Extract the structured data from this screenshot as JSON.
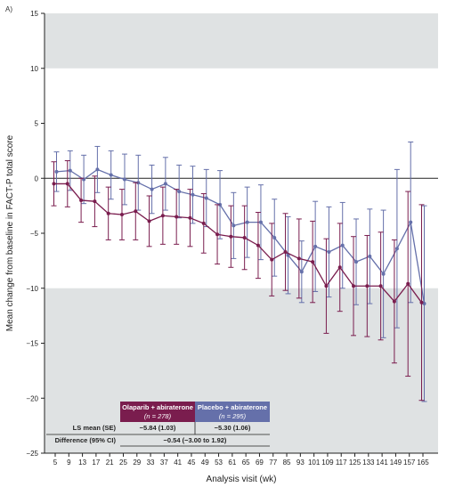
{
  "panel_label": "A)",
  "chart_data": {
    "type": "line",
    "xlabel": "Analysis visit (wk)",
    "ylabel": "Mean change from baseline in FACT-P total score",
    "ylim": [
      -25,
      15
    ],
    "yticks": [
      15,
      10,
      5,
      0,
      -5,
      -10,
      -15,
      -20,
      -25
    ],
    "categories": [
      "5",
      "9",
      "13",
      "17",
      "21",
      "25",
      "29",
      "33",
      "37",
      "41",
      "45",
      "49",
      "53",
      "61",
      "65",
      "69",
      "77",
      "85",
      "93",
      "101",
      "109",
      "117",
      "125",
      "133",
      "141",
      "149",
      "157",
      "165"
    ],
    "shaded_regions_y": [
      [
        10,
        15
      ],
      [
        -25,
        -10
      ]
    ],
    "reference_line_y": 0,
    "grid": false,
    "series": [
      {
        "name": "Olaparib + abiraterone",
        "color": "#7a1d4e",
        "values": [
          -0.5,
          -0.5,
          -2.0,
          -2.1,
          -3.2,
          -3.3,
          -3.0,
          -3.9,
          -3.4,
          -3.5,
          -3.6,
          -4.1,
          -5.1,
          -5.3,
          -5.4,
          -6.1,
          -7.4,
          -6.7,
          -7.3,
          -7.6,
          -9.8,
          -8.1,
          -9.8,
          -9.8,
          -9.8,
          -11.2,
          -9.6,
          -11.3
        ],
        "errors": [
          2.0,
          2.1,
          2.0,
          2.3,
          2.4,
          2.3,
          2.6,
          2.3,
          2.6,
          2.5,
          2.6,
          2.7,
          2.7,
          2.8,
          2.9,
          3.0,
          3.3,
          3.5,
          3.6,
          3.7,
          4.3,
          4.0,
          4.5,
          4.6,
          4.9,
          5.6,
          8.4,
          8.9
        ]
      },
      {
        "name": "Placebo + abiraterone",
        "color": "#6570aa",
        "values": [
          0.6,
          0.7,
          -0.1,
          0.8,
          0.3,
          -0.1,
          -0.4,
          -1.0,
          -0.5,
          -1.2,
          -1.5,
          -1.8,
          -2.4,
          -4.3,
          -4.0,
          -4.0,
          -5.4,
          -7.0,
          -8.5,
          -6.2,
          -6.7,
          -6.1,
          -7.6,
          -7.1,
          -8.7,
          -6.4,
          -4.0,
          -11.4
        ],
        "errors": [
          1.8,
          1.8,
          2.2,
          2.1,
          2.2,
          2.3,
          2.5,
          2.2,
          2.4,
          2.4,
          2.6,
          2.6,
          3.1,
          3.0,
          3.2,
          3.4,
          3.5,
          3.5,
          2.8,
          4.1,
          4.1,
          3.9,
          3.9,
          4.3,
          5.8,
          7.2,
          7.3,
          8.9
        ]
      }
    ],
    "table": {
      "olaparib_header": "Olaparib + abiraterone",
      "olaparib_n_prefix": "(",
      "olaparib_n_italic": "n",
      "olaparib_n_suffix": " = 278)",
      "placebo_header": "Placebo + abiraterone",
      "placebo_n_prefix": "(",
      "placebo_n_italic": "n",
      "placebo_n_suffix": " = 295)",
      "row1_label": "LS mean (SE)",
      "row1_olaparib": "−5.84 (1.03)",
      "row1_placebo": "−5.30 (1.06)",
      "row2_label": "Difference (95% CI)",
      "row2_value": "−0.54 (−3.00 to 1.92)"
    }
  }
}
